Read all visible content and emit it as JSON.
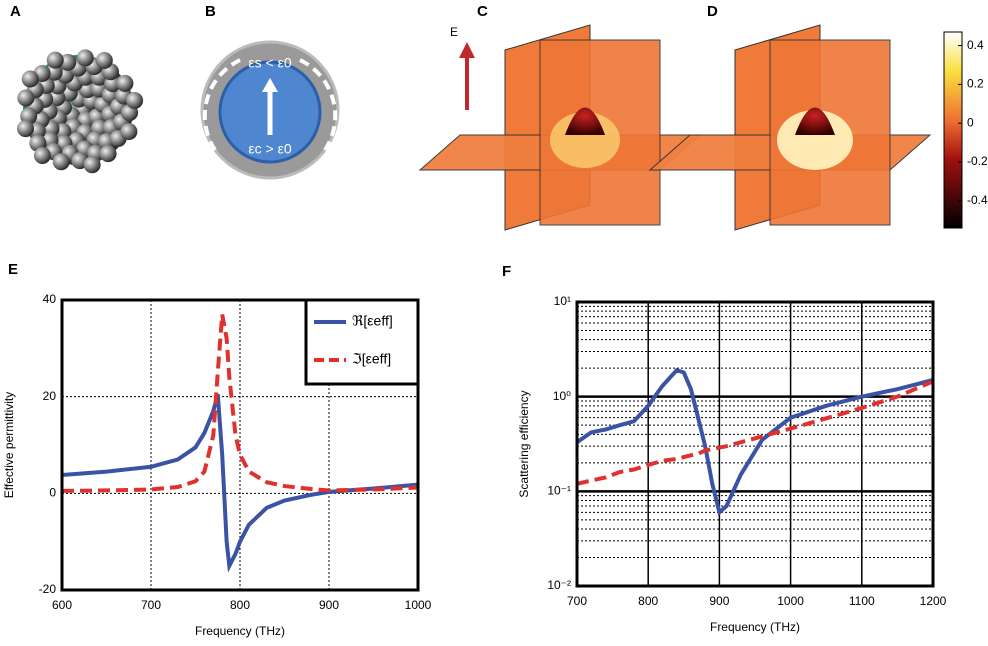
{
  "panel_labels": [
    "A",
    "B",
    "C",
    "D",
    "E",
    "F"
  ],
  "panel_b": {
    "shell": "εs < ε0",
    "core": "εc > ε0"
  },
  "field_label": "E",
  "colorbar": {
    "lim": [
      -0.54,
      0.47
    ],
    "ticks": [
      0.4,
      0.2,
      0,
      -0.2,
      -0.4
    ]
  },
  "chart_data": [
    {
      "type": "line",
      "xlabel": "Frequency (THz)",
      "ylabel": "Effective permittivity",
      "x": [
        600,
        650,
        700,
        730,
        750,
        760,
        770,
        775,
        780,
        785,
        788,
        795,
        800,
        810,
        830,
        850,
        880,
        900,
        950,
        1000
      ],
      "xlim": [
        600,
        1000
      ],
      "xticks": [
        600,
        700,
        800,
        900,
        1000
      ],
      "ylim": [
        -20,
        40
      ],
      "yticks": [
        -20,
        0,
        20,
        40
      ],
      "grid": true,
      "legend": "upper right",
      "series": [
        {
          "name": "ℜ[εeff]",
          "color": "#3a53a4",
          "dash": false,
          "values": [
            3.8,
            4.5,
            5.5,
            7,
            9.5,
            12.5,
            17,
            20.5,
            8,
            -10,
            -15,
            -12.5,
            -10,
            -6.5,
            -3,
            -1.5,
            -0.3,
            0.3,
            1,
            1.8
          ]
        },
        {
          "name": "ℑ[εeff]",
          "color": "#e0312f",
          "dash": true,
          "values": [
            0.5,
            0.6,
            0.8,
            1.3,
            2.5,
            4.5,
            12,
            25,
            37,
            32,
            24,
            12,
            8,
            4.5,
            2.3,
            1.5,
            0.9,
            0.6,
            0.8,
            1.2
          ]
        }
      ]
    },
    {
      "type": "line",
      "xlabel": "Frequency (THz)",
      "ylabel": "Scattering efficiency",
      "log": true,
      "x": [
        700,
        720,
        740,
        760,
        780,
        800,
        820,
        840,
        850,
        860,
        870,
        880,
        890,
        900,
        910,
        930,
        960,
        1000,
        1050,
        1100,
        1150,
        1200
      ],
      "xlim": [
        700,
        1200
      ],
      "xticks": [
        700,
        800,
        900,
        1000,
        1100,
        1200
      ],
      "ylim": [
        0.01,
        10
      ],
      "yticks": [
        {
          "value": 0.01,
          "label": "10⁻²"
        },
        {
          "value": 0.1,
          "label": "10⁻¹"
        },
        {
          "value": 1,
          "label": "10⁰"
        },
        {
          "value": 10,
          "label": "10¹"
        }
      ],
      "grid": true,
      "series": [
        {
          "name": null,
          "color": "#3a53a4",
          "dash": false,
          "values": [
            0.33,
            0.42,
            0.45,
            0.5,
            0.55,
            0.8,
            1.3,
            1.9,
            1.8,
            1.2,
            0.6,
            0.3,
            0.12,
            0.06,
            0.07,
            0.15,
            0.35,
            0.6,
            0.8,
            1.0,
            1.2,
            1.5
          ]
        },
        {
          "name": null,
          "color": "#e0312f",
          "dash": true,
          "values": [
            0.12,
            0.13,
            0.14,
            0.16,
            0.17,
            0.19,
            0.21,
            0.22,
            0.23,
            0.24,
            0.25,
            0.27,
            0.28,
            0.29,
            0.3,
            0.33,
            0.38,
            0.46,
            0.59,
            0.76,
            1.0,
            1.45
          ]
        }
      ]
    }
  ]
}
